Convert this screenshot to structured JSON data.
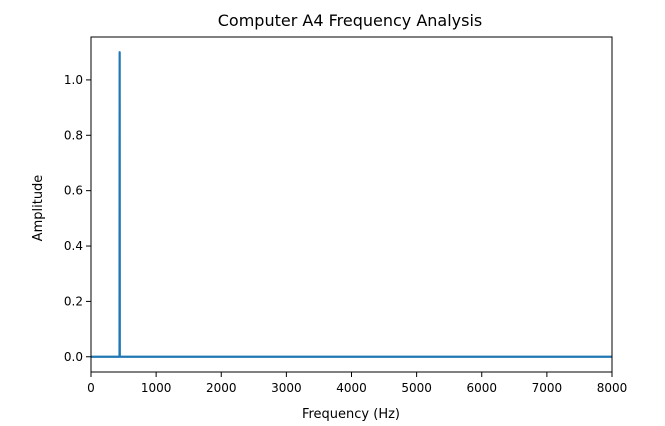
{
  "chart_data": {
    "type": "line",
    "title": "Computer A4 Frequency Analysis",
    "xlabel": "Frequency (Hz)",
    "ylabel": "Amplitude",
    "xlim": [
      0,
      8000
    ],
    "ylim": [
      -0.055,
      1.155
    ],
    "xticks": [
      0,
      1000,
      2000,
      3000,
      4000,
      5000,
      6000,
      7000,
      8000
    ],
    "xtick_labels": [
      "0",
      "1000",
      "2000",
      "3000",
      "4000",
      "5000",
      "6000",
      "7000",
      "8000"
    ],
    "yticks": [
      0.0,
      0.2,
      0.4,
      0.6,
      0.8,
      1.0
    ],
    "ytick_labels": [
      "0.0",
      "0.2",
      "0.4",
      "0.6",
      "0.8",
      "1.0"
    ],
    "grid": false,
    "legend": "none",
    "series": [
      {
        "color": "#1f77b4",
        "x": [
          0,
          438,
          440,
          442,
          8000
        ],
        "y": [
          0.0,
          0.0,
          1.1,
          0.0,
          0.0
        ]
      }
    ]
  }
}
